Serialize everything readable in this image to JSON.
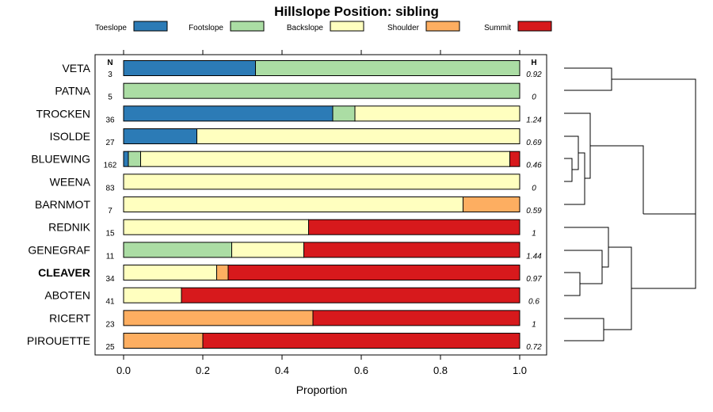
{
  "chart_data": {
    "type": "bar",
    "orientation": "horizontal-stacked",
    "title": "Hillslope Position: sibling",
    "xlabel": "Proportion",
    "ylabel": "",
    "xlim": [
      0,
      1
    ],
    "x_ticks": [
      "0.0",
      "0.2",
      "0.4",
      "0.6",
      "0.8",
      "1.0"
    ],
    "n_header": "N",
    "h_header": "H",
    "highlight_category": "CLEAVER",
    "series": [
      {
        "name": "Toeslope",
        "color": "#2c7bb6"
      },
      {
        "name": "Footslope",
        "color": "#abdda4"
      },
      {
        "name": "Backslope",
        "color": "#ffffbf"
      },
      {
        "name": "Shoulder",
        "color": "#fdae61"
      },
      {
        "name": "Summit",
        "color": "#d7191c"
      }
    ],
    "categories": [
      "VETA",
      "PATNA",
      "TROCKEN",
      "ISOLDE",
      "BLUEWING",
      "WEENA",
      "BARNMOT",
      "REDNIK",
      "GENEGRAF",
      "CLEAVER",
      "ABOTEN",
      "RICERT",
      "PIROUETTE"
    ],
    "n_values": [
      "3",
      "5",
      "36",
      "27",
      "162",
      "83",
      "7",
      "15",
      "11",
      "34",
      "41",
      "23",
      "25"
    ],
    "h_values": [
      "0.92",
      "0",
      "1.24",
      "0.69",
      "0.46",
      "0",
      "0.59",
      "1",
      "1.44",
      "0.97",
      "0.6",
      "1",
      "0.72"
    ],
    "proportions": [
      [
        0.333,
        0.667,
        0,
        0,
        0
      ],
      [
        0,
        1,
        0,
        0,
        0
      ],
      [
        0.528,
        0.056,
        0.416,
        0,
        0
      ],
      [
        0.185,
        0,
        0.815,
        0,
        0
      ],
      [
        0.012,
        0.031,
        0.932,
        0,
        0.025
      ],
      [
        0,
        0,
        1,
        0,
        0
      ],
      [
        0,
        0,
        0.857,
        0.143,
        0
      ],
      [
        0,
        0,
        0.467,
        0,
        0.533
      ],
      [
        0,
        0.273,
        0.182,
        0,
        0.545
      ],
      [
        0,
        0,
        0.235,
        0.029,
        0.736
      ],
      [
        0,
        0,
        0.146,
        0,
        0.854
      ],
      [
        0,
        0,
        0,
        0.478,
        0.522
      ],
      [
        0,
        0,
        0,
        0.2,
        0.8
      ]
    ]
  }
}
